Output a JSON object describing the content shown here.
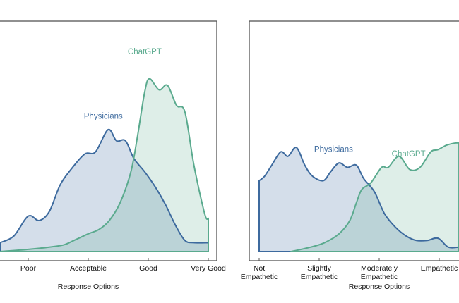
{
  "colors": {
    "physicians": "#3d6a9e",
    "chatgpt": "#5aaa8e",
    "physicians_fill": "rgba(61,106,158,0.22)",
    "chatgpt_fill": "rgba(90,170,142,0.2)"
  },
  "chart_data": [
    {
      "type": "area",
      "title": "",
      "xlabel": "Response Options",
      "ylabel": "",
      "x_ticks": [
        {
          "value": 1,
          "label": [
            "Poor"
          ]
        },
        {
          "value": 2,
          "label": [
            "Acceptable"
          ]
        },
        {
          "value": 3,
          "label": [
            "Good"
          ]
        },
        {
          "value": 4,
          "label": [
            "Very Good"
          ]
        }
      ],
      "xlim": [
        0.53,
        4.14
      ],
      "ylim": [
        0,
        1.04
      ],
      "grid": false,
      "series": [
        {
          "name": "Physicians",
          "key": "physicians",
          "x": [
            0.53,
            0.76,
            1.0,
            1.18,
            1.35,
            1.53,
            1.71,
            1.94,
            2.12,
            2.33,
            2.47,
            2.62,
            2.76,
            2.94,
            3.12,
            3.29,
            3.45,
            3.61,
            3.76,
            4.0
          ],
          "y": [
            0.04,
            0.07,
            0.16,
            0.14,
            0.18,
            0.3,
            0.37,
            0.44,
            0.45,
            0.55,
            0.5,
            0.5,
            0.42,
            0.36,
            0.29,
            0.21,
            0.12,
            0.05,
            0.04,
            0.04
          ],
          "label_at": [
            2.25,
            0.6
          ]
        },
        {
          "name": "ChatGPT",
          "key": "chatgpt",
          "x": [
            0.53,
            1.0,
            1.35,
            1.59,
            1.76,
            2.0,
            2.18,
            2.35,
            2.53,
            2.71,
            2.82,
            2.94,
            3.02,
            3.18,
            3.32,
            3.47,
            3.61,
            3.76,
            3.94,
            4.0
          ],
          "y": [
            0.0,
            0.01,
            0.02,
            0.03,
            0.05,
            0.08,
            0.1,
            0.14,
            0.22,
            0.36,
            0.52,
            0.72,
            0.78,
            0.73,
            0.75,
            0.66,
            0.63,
            0.39,
            0.17,
            0.15
          ],
          "label_at": [
            2.94,
            0.89
          ]
        }
      ]
    },
    {
      "type": "area",
      "title": "",
      "xlabel": "Response Options",
      "ylabel": "",
      "x_ticks": [
        {
          "value": 1,
          "label": [
            "Not",
            "Empathetic"
          ]
        },
        {
          "value": 2,
          "label": [
            "Slightly",
            "Empathetic"
          ]
        },
        {
          "value": 3,
          "label": [
            "Moderately",
            "Empathetic"
          ]
        },
        {
          "value": 4,
          "label": [
            "Empathetic"
          ]
        }
      ],
      "xlim": [
        0.84,
        4.5
      ],
      "ylim": [
        0,
        1.04
      ],
      "grid": false,
      "series": [
        {
          "name": "Physicians",
          "key": "physicians",
          "x": [
            1.0,
            1.09,
            1.21,
            1.36,
            1.48,
            1.62,
            1.76,
            1.89,
            2.07,
            2.19,
            2.33,
            2.47,
            2.62,
            2.74,
            2.92,
            3.09,
            3.27,
            3.45,
            3.62,
            3.8,
            3.98,
            4.15,
            4.33
          ],
          "y": [
            0.32,
            0.34,
            0.39,
            0.45,
            0.43,
            0.47,
            0.39,
            0.34,
            0.32,
            0.36,
            0.4,
            0.38,
            0.39,
            0.33,
            0.27,
            0.17,
            0.11,
            0.07,
            0.05,
            0.05,
            0.06,
            0.02,
            0.02
          ],
          "label_at": [
            2.24,
            0.45
          ]
        },
        {
          "name": "ChatGPT",
          "key": "chatgpt",
          "x": [
            1.53,
            1.86,
            2.09,
            2.33,
            2.51,
            2.62,
            2.71,
            2.86,
            3.04,
            3.15,
            3.33,
            3.51,
            3.68,
            3.86,
            3.98,
            4.12,
            4.27,
            4.33
          ],
          "y": [
            0.0,
            0.02,
            0.04,
            0.08,
            0.14,
            0.22,
            0.28,
            0.31,
            0.38,
            0.38,
            0.43,
            0.37,
            0.38,
            0.45,
            0.46,
            0.48,
            0.49,
            0.49
          ],
          "label_at": [
            3.49,
            0.43
          ]
        }
      ]
    }
  ]
}
